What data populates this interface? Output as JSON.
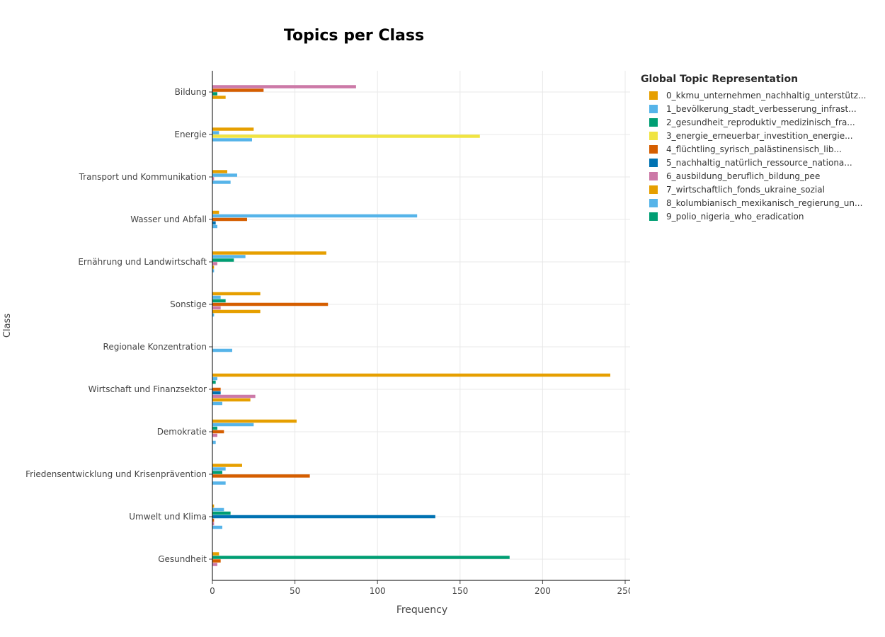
{
  "chart_data": {
    "type": "bar",
    "orientation": "horizontal",
    "title": "Topics per Class",
    "xlabel": "Frequency",
    "ylabel": "Class",
    "xlim": [
      0,
      253
    ],
    "xticks": [
      0,
      50,
      100,
      150,
      200,
      250
    ],
    "grid": true,
    "legend_title": "Global Topic Representation",
    "legend_position": "right",
    "categories": [
      "Bildung",
      "Energie",
      "Transport und Kommunikation",
      "Wasser und Abfall",
      "Ernährung und Landwirtschaft",
      "Sonstige",
      "Regionale Konzentration",
      "Wirtschaft und Finanzsektor",
      "Demokratie",
      "Friedensentwicklung und Krisenprävention",
      "Umwelt und Klima",
      "Gesundheit"
    ],
    "series": [
      {
        "name": "0_kkmu_unternehmen_nachhaltig_unterstütz...",
        "color": "#E69F00",
        "values": [
          1,
          0,
          0,
          0,
          1,
          0,
          0,
          23,
          0,
          0,
          1,
          0
        ]
      },
      {
        "name": "1_bevölkerung_stadt_verbesserung_infrast...",
        "color": "#56B4E9",
        "values": [
          0,
          24,
          11,
          3,
          1,
          1,
          0,
          6,
          2,
          8,
          6,
          0
        ]
      },
      {
        "name": "2_gesundheit_reproduktiv_medizinisch_fra...",
        "color": "#009E73",
        "values": [
          0,
          0,
          0,
          0,
          0,
          0,
          0,
          0,
          0,
          0,
          0,
          0
        ]
      },
      {
        "name": "3_energie_erneuerbar_investition_energie...",
        "color": "#F0E442",
        "values": [
          0,
          162,
          0,
          0,
          0,
          0,
          0,
          0,
          0,
          0,
          0,
          0
        ]
      },
      {
        "name": "4_flüchtling_syrisch_palästinensisch_lib...",
        "color": "#D55E00",
        "values": [
          31,
          0,
          0,
          21,
          0,
          70,
          0,
          5,
          7,
          59,
          1,
          5
        ]
      },
      {
        "name": "5_nachhaltig_natürlich_ressource_nationa...",
        "color": "#0072B2",
        "values": [
          0,
          0,
          0,
          2,
          0,
          0,
          0,
          5,
          0,
          0,
          135,
          0
        ]
      },
      {
        "name": "6_ausbildung_beruflich_bildung_pee",
        "color": "#CC79A7",
        "values": [
          87,
          0,
          1,
          0,
          3,
          5,
          0,
          26,
          3,
          0,
          1,
          3
        ]
      },
      {
        "name": "7_wirtschaftlich_fonds_ukraine_sozial",
        "color": "#E69F00",
        "values": [
          8,
          25,
          9,
          4,
          69,
          29,
          1,
          241,
          51,
          18,
          10,
          4
        ]
      },
      {
        "name": "8_kolumbianisch_mexikanisch_regierung_un...",
        "color": "#56B4E9",
        "values": [
          0,
          4,
          15,
          124,
          20,
          5,
          12,
          3,
          25,
          8,
          7,
          0
        ]
      },
      {
        "name": "9_polio_nigeria_who_eradication",
        "color": "#009E73",
        "values": [
          3,
          0,
          0,
          0,
          13,
          8,
          0,
          2,
          3,
          6,
          11,
          180
        ]
      }
    ],
    "bar_order": [
      [
        6,
        4,
        9,
        7
      ],
      [
        7,
        8,
        3,
        1
      ],
      [
        7,
        8,
        6,
        1
      ],
      [
        7,
        8,
        4,
        5,
        1
      ],
      [
        7,
        8,
        9,
        6,
        0,
        1
      ],
      [
        7,
        8,
        9,
        4,
        6,
        7,
        1
      ],
      [
        0,
        1,
        8
      ],
      [
        7,
        8,
        9,
        3,
        4,
        5,
        6,
        0,
        1
      ],
      [
        7,
        8,
        9,
        4,
        6,
        0,
        1
      ],
      [
        7,
        8,
        9,
        4,
        0,
        1
      ],
      [
        0,
        8,
        9,
        5,
        4,
        6,
        1
      ],
      [
        7,
        9,
        4,
        6
      ]
    ]
  }
}
